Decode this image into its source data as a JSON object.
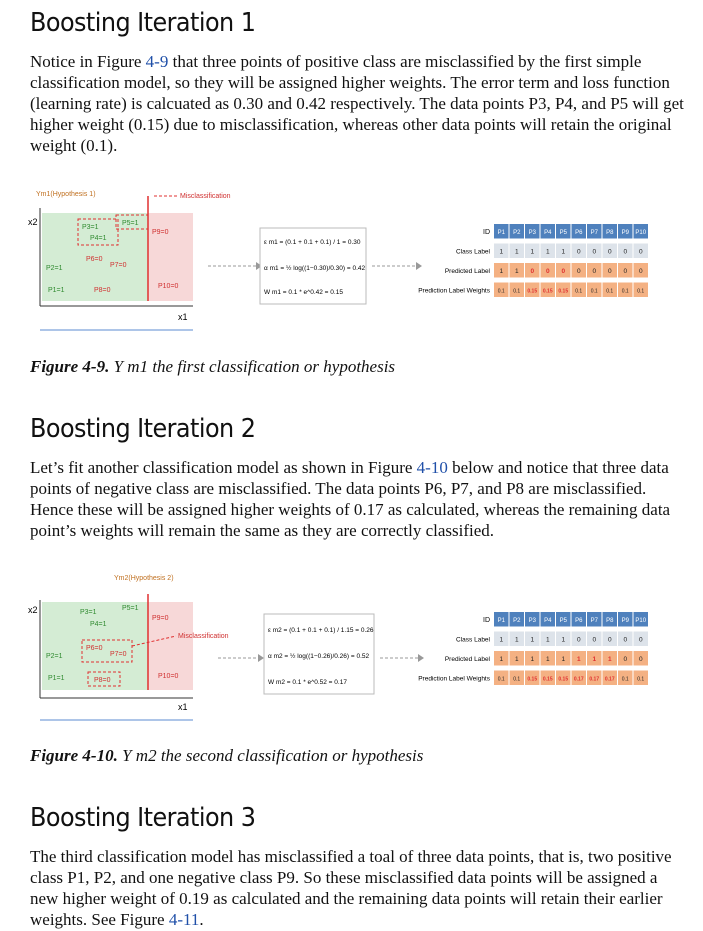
{
  "section1": {
    "heading": "Boosting Iteration 1",
    "para_a": "Notice in Figure ",
    "para_ref": "4-9",
    "para_b": " that three points of positive class are misclassified by the first simple classification model, so they will be assigned higher weights. The error term and loss function (learning rate) is calcuated as 0.30 and 0.42 respectively. The data points P3, P4, and P5 will get higher weight (0.15) due to misclassification, whereas other data points will retain the original weight (0.1).",
    "figure": {
      "hyp_label": "Ym1(Hypothesis 1)",
      "misclass_label": "Misclassification",
      "axis_x2": "x2",
      "axis_x1": "x1",
      "points": [
        "P3=1",
        "P4=1",
        "P5=1",
        "P9=0",
        "P6=0",
        "P7=0",
        "P2=1",
        "P1=1",
        "P8=0",
        "P10=0"
      ],
      "eq1": "ε m1 = (0.1 + 0.1 + 0.1) / 1 = 0.30",
      "eq2": "α m1 = ½ log((1−0.30)/0.30) = 0.42",
      "eq3": "W m1 = 0.1 * e^0.42 = 0.15",
      "table_headers": [
        "ID",
        "P1",
        "P2",
        "P3",
        "P4",
        "P5",
        "P6",
        "P7",
        "P8",
        "P9",
        "P10"
      ],
      "row_labels": [
        "Class Label",
        "Predicted Label",
        "Prediction Label Weights"
      ],
      "class_label": [
        "1",
        "1",
        "1",
        "1",
        "1",
        "0",
        "0",
        "0",
        "0",
        "0"
      ],
      "predicted": [
        "1",
        "1",
        "0",
        "0",
        "0",
        "0",
        "0",
        "0",
        "0",
        "0"
      ],
      "weights": [
        "0.1",
        "0.1",
        "0.15",
        "0.15",
        "0.15",
        "0.1",
        "0.1",
        "0.1",
        "0.1",
        "0.1"
      ]
    },
    "caption_bold": "Figure 4-9.",
    "caption_text": "Y m1 the first classification or hypothesis"
  },
  "section2": {
    "heading": "Boosting Iteration 2",
    "para_a": "Let’s fit another classification model as shown in Figure ",
    "para_ref": "4-10",
    "para_b": " below and notice that three data points of negative class are misclassified. The data points P6, P7, and P8 are misclassified. Hence these will be assigned higher weights of 0.17 as calculated, whereas the remaining data point’s weights will remain the same as they are correctly classified.",
    "figure": {
      "hyp_label": "Ym2(Hypothesis 2)",
      "misclass_label": "Misclassification",
      "axis_x2": "x2",
      "axis_x1": "x1",
      "points": [
        "P3=1",
        "P4=1",
        "P5=1",
        "P9=0",
        "P6=0",
        "P7=0",
        "P2=1",
        "P1=1",
        "P8=0",
        "P10=0"
      ],
      "eq1": "ε m2 = (0.1 + 0.1 + 0.1) / 1.15 = 0.26",
      "eq2": "α m2 = ½ log((1−0.26)/0.26) = 0.52",
      "eq3": "W m2 = 0.1 * e^0.52 = 0.17",
      "table_headers": [
        "ID",
        "P1",
        "P2",
        "P3",
        "P4",
        "P5",
        "P6",
        "P7",
        "P8",
        "P9",
        "P10"
      ],
      "row_labels": [
        "Class Label",
        "Predicted Label",
        "Prediction Label Weights"
      ],
      "class_label": [
        "1",
        "1",
        "1",
        "1",
        "1",
        "0",
        "0",
        "0",
        "0",
        "0"
      ],
      "predicted": [
        "1",
        "1",
        "1",
        "1",
        "1",
        "1",
        "1",
        "1",
        "0",
        "0"
      ],
      "weights": [
        "0.1",
        "0.1",
        "0.15",
        "0.15",
        "0.15",
        "0.17",
        "0.17",
        "0.17",
        "0.1",
        "0.1"
      ]
    },
    "caption_bold": "Figure 4-10.",
    "caption_text": "Y m2 the second classification or hypothesis"
  },
  "section3": {
    "heading": "Boosting Iteration 3",
    "para_a": "The third classification model has misclassified a toal of three data points, that is, two positive class P1, P2, and one negative class P9. So these misclassified data points will be assigned a new higher weight of 0.19 as calculated and the remaining data points will retain their earlier weights. See Figure ",
    "para_ref": "4-11",
    "para_b": "."
  },
  "colors": {
    "link": "#1f4fa8",
    "green": "#d4ecd4",
    "pink": "#f7d8d8",
    "blue_header": "#4f81bd",
    "orange": "#f4b183",
    "grey_cell": "#dde3ea",
    "red": "#e03030"
  }
}
